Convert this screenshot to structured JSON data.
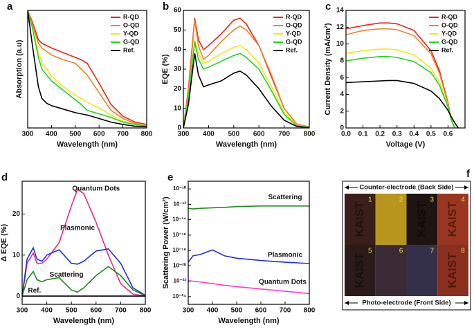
{
  "chart_data": [
    {
      "type": "line",
      "panel": "a",
      "xlabel": "Wavelength (nm)",
      "ylabel": "Absorption (a.u)",
      "x": [
        300,
        320,
        345,
        360,
        380,
        400,
        450,
        500,
        525,
        550,
        600,
        650,
        700,
        750,
        800
      ],
      "xlim": [
        300,
        800
      ],
      "xticks": [
        300,
        400,
        500,
        600,
        700,
        800
      ],
      "ylim": [
        0,
        1
      ],
      "legend": "upper right",
      "series": [
        {
          "name": "R-QD",
          "color": "#e8261c",
          "values": [
            1.0,
            0.9,
            0.75,
            0.72,
            0.7,
            0.68,
            0.64,
            0.6,
            0.58,
            0.55,
            0.38,
            0.2,
            0.1,
            0.05,
            0.03
          ]
        },
        {
          "name": "O-QD",
          "color": "#e8862a",
          "values": [
            1.0,
            0.88,
            0.72,
            0.68,
            0.65,
            0.62,
            0.58,
            0.55,
            0.5,
            0.45,
            0.3,
            0.15,
            0.08,
            0.04,
            0.02
          ]
        },
        {
          "name": "Y-QD",
          "color": "#f5e81c",
          "values": [
            1.0,
            0.85,
            0.65,
            0.55,
            0.5,
            0.44,
            0.35,
            0.28,
            0.25,
            0.22,
            0.17,
            0.11,
            0.06,
            0.03,
            0.02
          ]
        },
        {
          "name": "G-QD",
          "color": "#22d422",
          "values": [
            1.0,
            0.85,
            0.6,
            0.5,
            0.45,
            0.4,
            0.32,
            0.24,
            0.2,
            0.15,
            0.12,
            0.09,
            0.05,
            0.03,
            0.015
          ]
        },
        {
          "name": "Ref.",
          "color": "#000000",
          "values": [
            1.0,
            0.7,
            0.35,
            0.25,
            0.21,
            0.19,
            0.16,
            0.13,
            0.12,
            0.11,
            0.08,
            0.05,
            0.03,
            0.015,
            0.01
          ]
        }
      ]
    },
    {
      "type": "line",
      "panel": "b",
      "xlabel": "Wavelength (nm)",
      "ylabel": "EQE (%)",
      "x": [
        300,
        320,
        345,
        360,
        380,
        400,
        450,
        500,
        525,
        550,
        600,
        650,
        700,
        750,
        800
      ],
      "xlim": [
        300,
        800
      ],
      "xticks": [
        300,
        400,
        500,
        600,
        700,
        800
      ],
      "ylim": [
        0,
        60
      ],
      "yticks": [
        0,
        10,
        20,
        30,
        40,
        50,
        60
      ],
      "legend": "upper right",
      "series": [
        {
          "name": "R-QD",
          "color": "#e8261c",
          "values": [
            0,
            20,
            56,
            45,
            40,
            42,
            48,
            55,
            56,
            53,
            42,
            26,
            10,
            2,
            0.5
          ]
        },
        {
          "name": "O-QD",
          "color": "#e8862a",
          "values": [
            0,
            18,
            55,
            42,
            35,
            37,
            44,
            50,
            52,
            50,
            42,
            27,
            10,
            2,
            0.5
          ]
        },
        {
          "name": "Y-QD",
          "color": "#f5e81c",
          "values": [
            0,
            16,
            45,
            38,
            33,
            34,
            38,
            41,
            42,
            40,
            33,
            21,
            8,
            1.5,
            0.3
          ]
        },
        {
          "name": "G-QD",
          "color": "#22d422",
          "values": [
            0,
            15,
            44,
            35,
            30,
            31,
            34,
            37,
            38,
            36,
            30,
            19,
            7,
            1.2,
            0.2
          ]
        },
        {
          "name": "Ref.",
          "color": "#000000",
          "values": [
            0,
            12,
            38,
            27,
            21,
            22,
            24,
            28,
            29,
            27,
            20,
            11,
            4,
            0.8,
            0.1
          ]
        }
      ]
    },
    {
      "type": "line",
      "panel": "c",
      "xlabel": "Voltage (V)",
      "ylabel": "Current Density (mA/cm²)",
      "x": [
        0,
        0.1,
        0.2,
        0.25,
        0.3,
        0.4,
        0.5,
        0.55,
        0.6,
        0.62,
        0.64,
        0.66
      ],
      "xlim": [
        0,
        0.7
      ],
      "xticks": [
        {
          "value": 0,
          "label": "0.0"
        },
        0.1,
        0.2,
        0.3,
        0.4,
        0.5,
        0.6
      ],
      "ylim": [
        0,
        14
      ],
      "yticks": [
        0,
        2,
        4,
        6,
        8,
        10,
        12,
        14
      ],
      "legend": "upper right",
      "series": [
        {
          "name": "R-QD",
          "color": "#e8261c",
          "values": [
            11.8,
            12.2,
            12.5,
            12.5,
            12.4,
            11.6,
            9.2,
            6.8,
            3.0,
            1.0,
            0,
            null
          ]
        },
        {
          "name": "O-QD",
          "color": "#e8862a",
          "values": [
            11.1,
            11.6,
            11.8,
            11.8,
            11.7,
            11.0,
            8.8,
            6.5,
            2.9,
            1.0,
            0,
            null
          ]
        },
        {
          "name": "Y-QD",
          "color": "#f5e81c",
          "values": [
            8.9,
            9.2,
            9.4,
            9.4,
            9.3,
            8.7,
            7.1,
            5.5,
            2.6,
            0.9,
            0,
            null
          ]
        },
        {
          "name": "G-QD",
          "color": "#22d422",
          "values": [
            8.0,
            8.3,
            8.5,
            8.5,
            8.4,
            7.9,
            6.6,
            5.1,
            2.5,
            0.9,
            0,
            null
          ]
        },
        {
          "name": "Ref.",
          "color": "#000000",
          "values": [
            5.4,
            5.5,
            5.6,
            5.65,
            5.65,
            5.3,
            4.4,
            3.5,
            2.1,
            1.3,
            0.6,
            0
          ]
        }
      ]
    },
    {
      "type": "line",
      "panel": "d",
      "xlabel": "Wavelength (nm)",
      "ylabel": "Δ EQE (%)",
      "x": [
        300,
        320,
        345,
        360,
        380,
        400,
        450,
        500,
        525,
        550,
        600,
        650,
        700,
        750,
        800
      ],
      "xlim": [
        300,
        800
      ],
      "xticks": [
        300,
        400,
        500,
        600,
        700,
        800
      ],
      "ylim": [
        -2,
        28
      ],
      "yticks": [
        0,
        10,
        20
      ],
      "series": [
        {
          "name": "Quantum Dots",
          "color": "#e8298a",
          "values": [
            0,
            8,
            10.5,
            8,
            8,
            9,
            13,
            22,
            26,
            25,
            18,
            10,
            3,
            0.5,
            0
          ]
        },
        {
          "name": "Plasmonic",
          "color": "#1f2ee0",
          "values": [
            0,
            9,
            11.8,
            9,
            8.5,
            10,
            11.3,
            8,
            7.8,
            8.5,
            11,
            11.5,
            8,
            2,
            0.2
          ]
        },
        {
          "name": "Scattering",
          "color": "#1f8a1f",
          "values": [
            0,
            4,
            6,
            4,
            3.5,
            4,
            4.5,
            1.5,
            1,
            2,
            5,
            7.2,
            5,
            1.5,
            0.1
          ]
        },
        {
          "name": "Ref.",
          "color": "#000000",
          "values": [
            0,
            0,
            0,
            0,
            0,
            0,
            0,
            0,
            0,
            0,
            0,
            0,
            0,
            0,
            0
          ]
        }
      ]
    },
    {
      "type": "line",
      "panel": "e",
      "xlabel": "Wavelength (nm)",
      "ylabel": "Scattering Power (W/cm²)",
      "log_y": true,
      "x": [
        300,
        320,
        350,
        400,
        450,
        500,
        600,
        700,
        800
      ],
      "xlim": [
        300,
        800
      ],
      "xticks": [
        300,
        400,
        500,
        600,
        700,
        800
      ],
      "ylim": [
        1e-25,
        1e-09
      ],
      "yticks": [
        {
          "value": 1e-24,
          "label": "10⁻²⁴"
        },
        {
          "value": 1e-22,
          "label": "10⁻²²"
        },
        {
          "value": 1e-20,
          "label": "10⁻²⁰"
        },
        {
          "value": 1e-18,
          "label": "10⁻¹⁸"
        },
        {
          "value": 1e-16,
          "label": "10⁻¹⁶"
        },
        {
          "value": 1e-14,
          "label": "10⁻¹⁴"
        },
        {
          "value": 1e-12,
          "label": "10⁻¹²"
        },
        {
          "value": 1e-10,
          "label": "10⁻¹⁰"
        }
      ],
      "series": [
        {
          "name": "Scattering",
          "color": "#1f8a1f",
          "values": [
            3e-13,
            2.5e-13,
            3e-13,
            3.5e-13,
            4e-13,
            5e-13,
            6e-13,
            6e-13,
            6e-13
          ]
        },
        {
          "name": "Plasmonic",
          "color": "#1f2ee0",
          "values": [
            3e-20,
            2e-19,
            3e-19,
            1.2e-18,
            2e-19,
            1e-19,
            5e-20,
            3e-20,
            2e-20
          ]
        },
        {
          "name": "Quantum Dots",
          "color": "#ff3cd0",
          "values": [
            1.2e-22,
            1e-22,
            8e-23,
            5e-23,
            3e-23,
            2e-23,
            1e-23,
            5e-24,
            2.5e-24
          ]
        }
      ]
    }
  ],
  "photo": {
    "panel": "f",
    "top": "Counter-electrode (Back Side)",
    "bottom": "Photo-electrode (Front Side)",
    "cells": [
      {
        "number": "1",
        "text": "KAIST",
        "color": "#3a1e1a"
      },
      {
        "number": "2",
        "color": "#b8961e"
      },
      {
        "number": "3",
        "text": "KAIST",
        "color": "#1e1412"
      },
      {
        "number": "4",
        "text": "KAIST",
        "color": "#9a3520"
      },
      {
        "number": "5",
        "text": "KAIST",
        "color": "#2a1a1a"
      },
      {
        "number": "6",
        "color": "#3a2a35"
      },
      {
        "number": "7",
        "color": "#35304a"
      },
      {
        "number": "8",
        "text": "KAIST",
        "color": "#8a2e1e"
      }
    ]
  }
}
